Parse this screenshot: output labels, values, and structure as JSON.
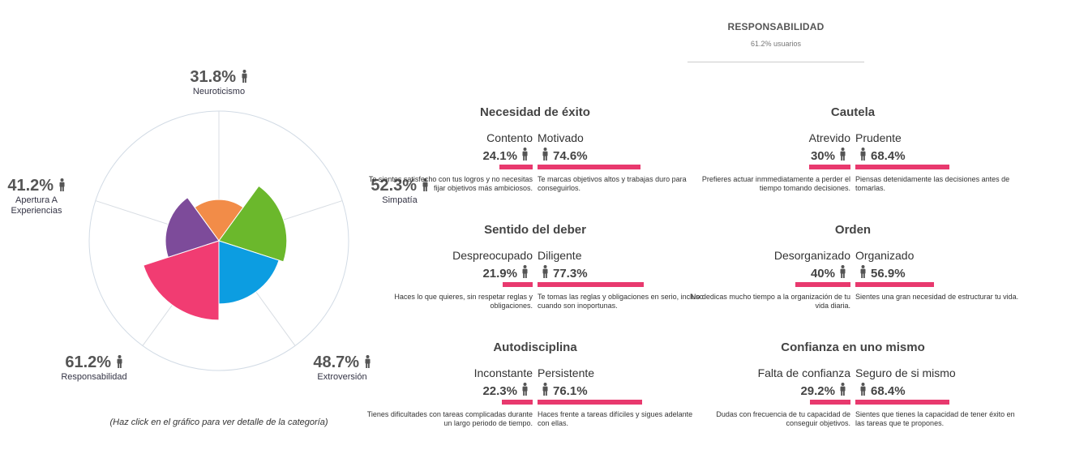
{
  "chart_data": {
    "type": "radar",
    "categories": [
      "Neuroticismo",
      "Simpatía",
      "Extroversión",
      "Responsabilidad",
      "Apertura A Experiencias"
    ],
    "values": [
      31.8,
      52.3,
      48.7,
      61.2,
      41.2
    ],
    "value_labels": [
      "31.8%",
      "52.3%",
      "48.7%",
      "61.2%",
      "41.2%"
    ],
    "colors": [
      "#f28c48",
      "#6bb82c",
      "#0c9de1",
      "#f13c72",
      "#7d4b9a"
    ],
    "rmax": 100
  },
  "hint": "(Haz click en el gráfico para ver detalle de la categoría)",
  "detail": {
    "title": "RESPONSABILIDAD",
    "subtitle": "61.2% usuarios",
    "facets": [
      {
        "title": "Necesidad de éxito",
        "left": {
          "name": "Contento",
          "pct": "24.1%",
          "value": 24.1,
          "desc": "Te sientes satisfecho con tus logros y no necesitas fijar objetivos más ambiciosos."
        },
        "right": {
          "name": "Motivado",
          "pct": "74.6%",
          "value": 74.6,
          "desc": "Te marcas objetivos altos y trabajas duro para conseguirlos."
        }
      },
      {
        "title": "Cautela",
        "left": {
          "name": "Atrevido",
          "pct": "30%",
          "value": 30,
          "desc": "Prefieres actuar inmmediatamente a perder el tiempo tomando decisiones."
        },
        "right": {
          "name": "Prudente",
          "pct": "68.4%",
          "value": 68.4,
          "desc": "Piensas detenidamente las decisiones antes de tomarlas."
        }
      },
      {
        "title": "Sentido del deber",
        "left": {
          "name": "Despreocupado",
          "pct": "21.9%",
          "value": 21.9,
          "desc": "Haces lo que quieres, sin respetar reglas y obligaciones."
        },
        "right": {
          "name": "Diligente",
          "pct": "77.3%",
          "value": 77.3,
          "desc": "Te tomas las reglas y obligaciones en serio, incluso cuando son inoportunas."
        }
      },
      {
        "title": "Orden",
        "left": {
          "name": "Desorganizado",
          "pct": "40%",
          "value": 40,
          "desc": "No dedicas mucho tiempo a la organización de tu vida diaria."
        },
        "right": {
          "name": "Organizado",
          "pct": "56.9%",
          "value": 56.9,
          "desc": "Sientes una gran necesidad de estructurar tu vida."
        }
      },
      {
        "title": "Autodisciplina",
        "left": {
          "name": "Inconstante",
          "pct": "22.3%",
          "value": 22.3,
          "desc": "Tienes dificultades con tareas complicadas durante un largo periodo de tiempo."
        },
        "right": {
          "name": "Persistente",
          "pct": "76.1%",
          "value": 76.1,
          "desc": "Haces frente a tareas difíciles y sigues adelante con ellas."
        }
      },
      {
        "title": "Confianza en uno mismo",
        "left": {
          "name": "Falta de confianza",
          "pct": "29.2%",
          "value": 29.2,
          "desc": "Dudas con frecuencia de tu capacidad de conseguir objetivos."
        },
        "right": {
          "name": "Seguro de si mismo",
          "pct": "68.4%",
          "value": 68.4,
          "desc": "Sientes que tienes la capacidad de tener éxito en las tareas que te propones."
        }
      }
    ]
  }
}
